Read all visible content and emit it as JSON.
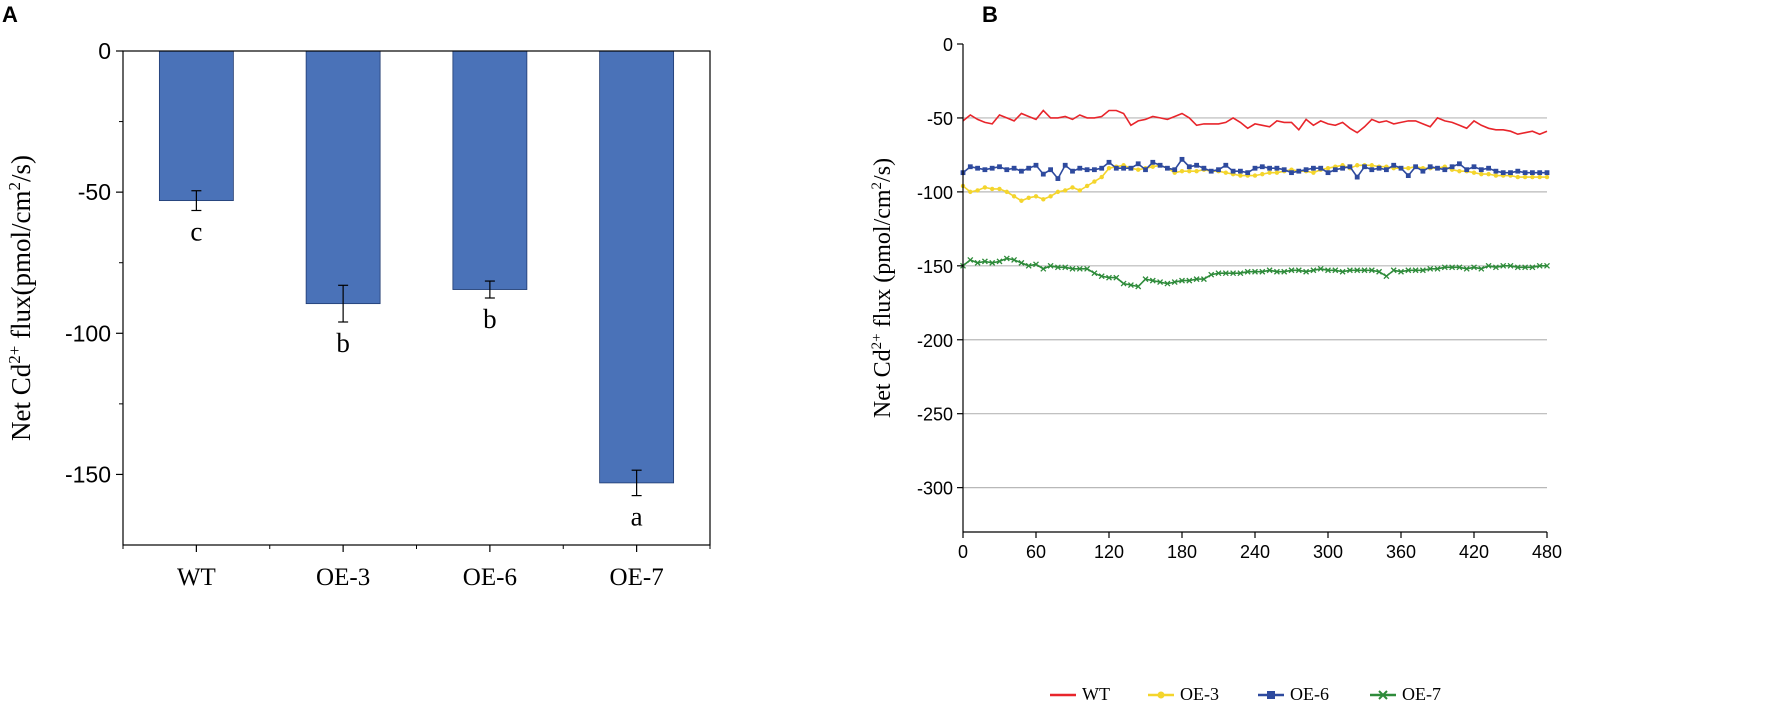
{
  "chart_data": [
    {
      "panel": "A",
      "type": "bar",
      "title": "",
      "xlabel": "",
      "ylabel_pre": "Net Cd",
      "ylabel_sup": "2+",
      "ylabel_mid": " flux(pmol/cm",
      "ylabel_sup2": "2",
      "ylabel_post": "/s)",
      "categories": [
        "WT",
        "OE-3",
        "OE-6",
        "OE-7"
      ],
      "values": [
        -53,
        -89.5,
        -84.5,
        -153
      ],
      "errors": [
        3.5,
        6.5,
        3,
        4.5
      ],
      "significance": [
        "c",
        "b",
        "b",
        "a"
      ],
      "ylim": [
        -175,
        0
      ],
      "yticks": [
        0,
        -50,
        -100,
        -150
      ],
      "ytick_labels": [
        "0",
        "-50",
        "-100",
        "-150"
      ],
      "bar_color": "#4a72b8"
    },
    {
      "panel": "B",
      "type": "line",
      "title": "",
      "xlabel": "",
      "ylabel_pre": "Net Cd",
      "ylabel_sup": "2+",
      "ylabel_mid": " flux (pmol/cm",
      "ylabel_sup2": "2",
      "ylabel_post": "/s)",
      "xlim": [
        0,
        480
      ],
      "ylim": [
        -330,
        0
      ],
      "xticks": [
        0,
        60,
        120,
        180,
        240,
        300,
        360,
        420,
        480
      ],
      "xtick_labels": [
        "0",
        "60",
        "120",
        "180",
        "240",
        "300",
        "360",
        "420",
        "480"
      ],
      "yticks": [
        0,
        -50,
        -100,
        -150,
        -200,
        -250,
        -300
      ],
      "ytick_labels": [
        "0",
        "-50",
        "-100",
        "-150",
        "-200",
        "-250",
        "-300"
      ],
      "legend_position": "bottom",
      "series": [
        {
          "name": "WT",
          "color": "#e8252b",
          "marker": "none",
          "x": [
            0,
            6,
            12,
            18,
            24,
            30,
            36,
            42,
            48,
            54,
            60,
            66,
            72,
            78,
            84,
            90,
            96,
            102,
            108,
            114,
            120,
            126,
            132,
            138,
            144,
            150,
            156,
            162,
            168,
            174,
            180,
            186,
            192,
            198,
            204,
            210,
            216,
            222,
            228,
            234,
            240,
            246,
            252,
            258,
            264,
            270,
            276,
            282,
            288,
            294,
            300,
            306,
            312,
            318,
            324,
            330,
            336,
            342,
            348,
            354,
            360,
            366,
            372,
            378,
            384,
            390,
            396,
            402,
            408,
            414,
            420,
            426,
            432,
            438,
            444,
            450,
            456,
            462,
            468,
            474,
            480
          ],
          "y": [
            -52,
            -48,
            -51,
            -53,
            -54,
            -48,
            -50,
            -52,
            -47,
            -49,
            -51,
            -45,
            -50,
            -50,
            -49,
            -51,
            -48,
            -50,
            -50,
            -49,
            -45,
            -45,
            -47,
            -55,
            -52,
            -51,
            -49,
            -50,
            -51,
            -49,
            -47,
            -50,
            -55,
            -54,
            -54,
            -54,
            -53,
            -50,
            -53,
            -57,
            -54,
            -55,
            -56,
            -52,
            -53,
            -53,
            -58,
            -51,
            -55,
            -52,
            -54,
            -55,
            -53,
            -57,
            -60,
            -56,
            -51,
            -53,
            -52,
            -54,
            -53,
            -52,
            -52,
            -54,
            -56,
            -50,
            -52,
            -53,
            -55,
            -57,
            -52,
            -55,
            -57,
            -58,
            -58,
            -59,
            -61,
            -60,
            -59,
            -61,
            -59
          ]
        },
        {
          "name": "OE-3",
          "color": "#f4d52c",
          "marker": "circle",
          "x": [
            0,
            6,
            12,
            18,
            24,
            30,
            36,
            42,
            48,
            54,
            60,
            66,
            72,
            78,
            84,
            90,
            96,
            102,
            108,
            114,
            120,
            126,
            132,
            138,
            144,
            150,
            156,
            162,
            168,
            174,
            180,
            186,
            192,
            198,
            204,
            210,
            216,
            222,
            228,
            234,
            240,
            246,
            252,
            258,
            264,
            270,
            276,
            282,
            288,
            294,
            300,
            306,
            312,
            318,
            324,
            330,
            336,
            342,
            348,
            354,
            360,
            366,
            372,
            378,
            384,
            390,
            396,
            402,
            408,
            414,
            420,
            426,
            432,
            438,
            444,
            450,
            456,
            462,
            468,
            474,
            480
          ],
          "y": [
            -96,
            -100,
            -99,
            -97,
            -98,
            -98,
            -100,
            -103,
            -106,
            -104,
            -103,
            -105,
            -103,
            -100,
            -99,
            -97,
            -99,
            -96,
            -93,
            -90,
            -84,
            -83,
            -82,
            -84,
            -85,
            -84,
            -83,
            -82,
            -84,
            -87,
            -86,
            -86,
            -86,
            -85,
            -86,
            -86,
            -87,
            -88,
            -89,
            -89,
            -89,
            -88,
            -87,
            -87,
            -86,
            -85,
            -86,
            -86,
            -87,
            -85,
            -84,
            -83,
            -82,
            -84,
            -82,
            -82,
            -82,
            -83,
            -83,
            -84,
            -84,
            -84,
            -83,
            -84,
            -84,
            -84,
            -83,
            -85,
            -86,
            -86,
            -87,
            -88,
            -88,
            -89,
            -89,
            -89,
            -90,
            -90,
            -90,
            -90,
            -90
          ]
        },
        {
          "name": "OE-6",
          "color": "#2e4a9e",
          "marker": "square",
          "x": [
            0,
            6,
            12,
            18,
            24,
            30,
            36,
            42,
            48,
            54,
            60,
            66,
            72,
            78,
            84,
            90,
            96,
            102,
            108,
            114,
            120,
            126,
            132,
            138,
            144,
            150,
            156,
            162,
            168,
            174,
            180,
            186,
            192,
            198,
            204,
            210,
            216,
            222,
            228,
            234,
            240,
            246,
            252,
            258,
            264,
            270,
            276,
            282,
            288,
            294,
            300,
            306,
            312,
            318,
            324,
            330,
            336,
            342,
            348,
            354,
            360,
            366,
            372,
            378,
            384,
            390,
            396,
            402,
            408,
            414,
            420,
            426,
            432,
            438,
            444,
            450,
            456,
            462,
            468,
            474,
            480
          ],
          "y": [
            -87,
            -83,
            -84,
            -85,
            -84,
            -83,
            -85,
            -84,
            -86,
            -84,
            -82,
            -88,
            -85,
            -91,
            -82,
            -86,
            -84,
            -85,
            -85,
            -84,
            -80,
            -84,
            -84,
            -84,
            -81,
            -85,
            -80,
            -82,
            -84,
            -85,
            -78,
            -83,
            -82,
            -84,
            -86,
            -85,
            -82,
            -86,
            -86,
            -87,
            -84,
            -83,
            -84,
            -84,
            -85,
            -87,
            -86,
            -85,
            -84,
            -84,
            -87,
            -85,
            -84,
            -83,
            -90,
            -83,
            -85,
            -84,
            -85,
            -82,
            -84,
            -89,
            -83,
            -86,
            -83,
            -84,
            -85,
            -83,
            -81,
            -85,
            -83,
            -85,
            -84,
            -86,
            -87,
            -87,
            -86,
            -87,
            -87,
            -87,
            -87
          ]
        },
        {
          "name": "OE-7",
          "color": "#2e8b3a",
          "marker": "cross",
          "x": [
            0,
            6,
            12,
            18,
            24,
            30,
            36,
            42,
            48,
            54,
            60,
            66,
            72,
            78,
            84,
            90,
            96,
            102,
            108,
            114,
            120,
            126,
            132,
            138,
            144,
            150,
            156,
            162,
            168,
            174,
            180,
            186,
            192,
            198,
            204,
            210,
            216,
            222,
            228,
            234,
            240,
            246,
            252,
            258,
            264,
            270,
            276,
            282,
            288,
            294,
            300,
            306,
            312,
            318,
            324,
            330,
            336,
            342,
            348,
            354,
            360,
            366,
            372,
            378,
            384,
            390,
            396,
            402,
            408,
            414,
            420,
            426,
            432,
            438,
            444,
            450,
            456,
            462,
            468,
            474,
            480
          ],
          "y": [
            -150,
            -146,
            -148,
            -147,
            -148,
            -147,
            -145,
            -146,
            -148,
            -150,
            -149,
            -152,
            -150,
            -151,
            -151,
            -152,
            -152,
            -152,
            -155,
            -157,
            -158,
            -158,
            -162,
            -163,
            -164,
            -159,
            -160,
            -161,
            -162,
            -161,
            -160,
            -160,
            -159,
            -159,
            -156,
            -155,
            -155,
            -155,
            -155,
            -154,
            -154,
            -154,
            -153,
            -154,
            -154,
            -153,
            -153,
            -154,
            -153,
            -152,
            -153,
            -153,
            -154,
            -153,
            -153,
            -153,
            -153,
            -154,
            -157,
            -153,
            -154,
            -153,
            -153,
            -153,
            -152,
            -152,
            -151,
            -151,
            -151,
            -152,
            -151,
            -152,
            -150,
            -151,
            -150,
            -150,
            -151,
            -151,
            -151,
            -150,
            -150
          ]
        }
      ]
    }
  ],
  "panel_labels": {
    "a": "A",
    "b": "B"
  }
}
